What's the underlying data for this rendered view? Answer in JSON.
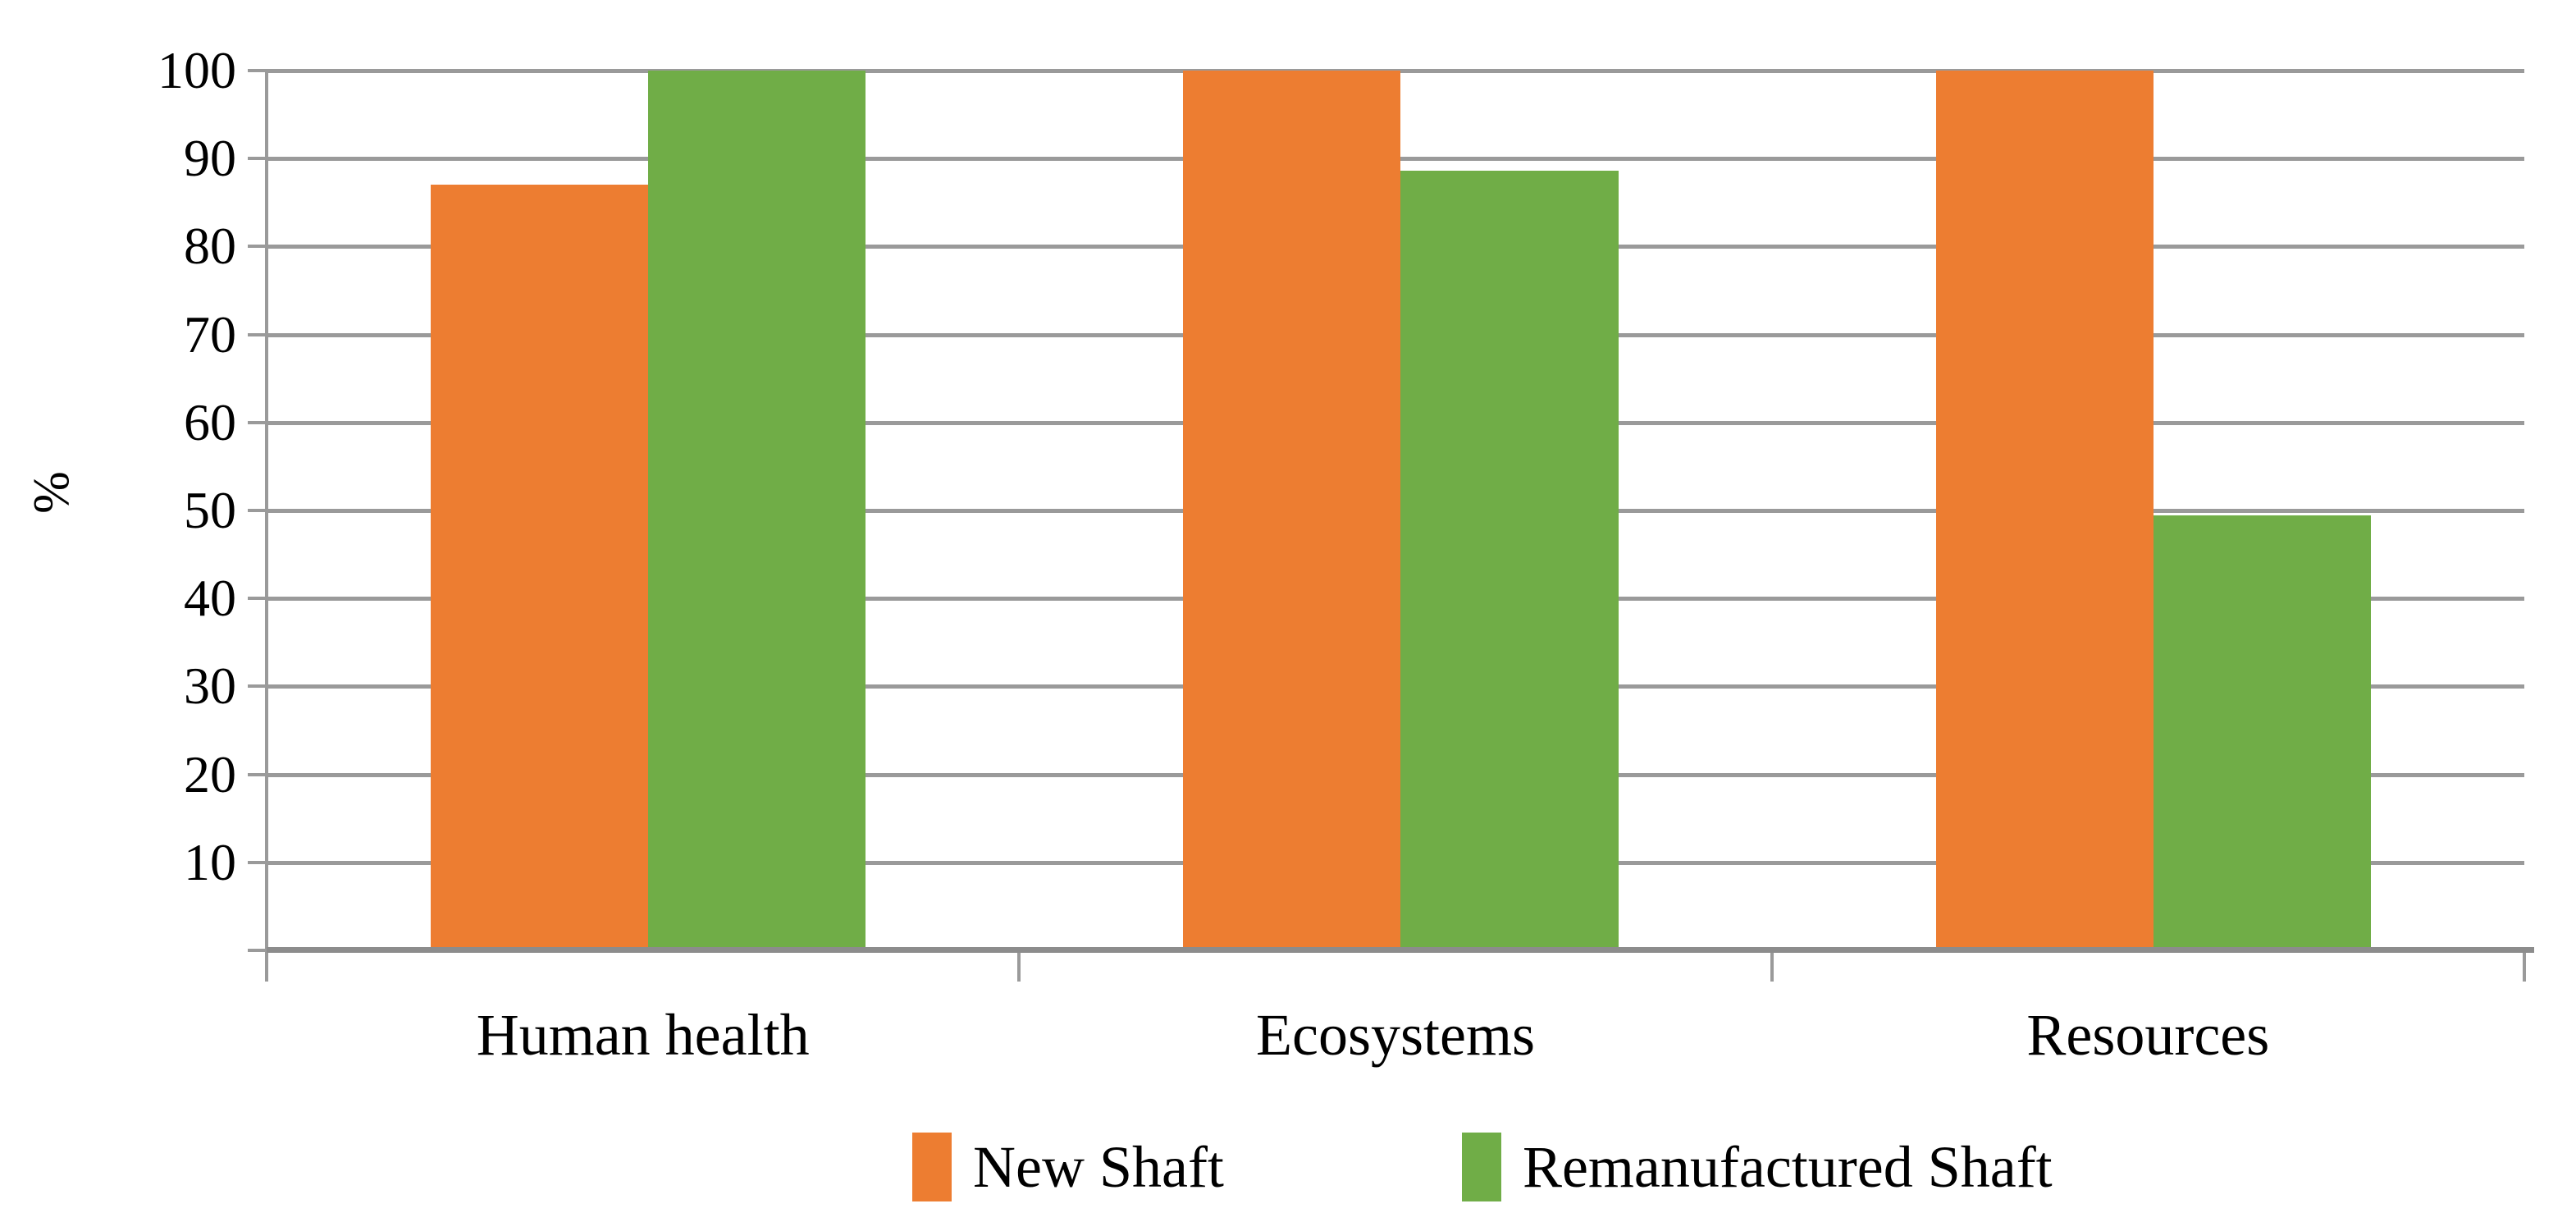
{
  "figure": {
    "background": "#ffffff",
    "text_color": "#000000",
    "gridline_color": "#9A9A9A",
    "axis_color": "#8C8C8C"
  },
  "chart_data": {
    "type": "bar",
    "title": "",
    "xlabel": "",
    "ylabel": "%",
    "categories": [
      "Human health",
      "Ecosystems",
      "Resources"
    ],
    "series": [
      {
        "name": "New Shaft",
        "color": "#ED7D31",
        "values": [
          87,
          100,
          100
        ]
      },
      {
        "name": "Remanufactured Shaft",
        "color": "#70AD47",
        "values": [
          100,
          88.6,
          49.4
        ]
      }
    ],
    "ylim": [
      0,
      100
    ],
    "ytick_step": 10,
    "ytick_labels": [
      "10",
      "20",
      "30",
      "40",
      "50",
      "60",
      "70",
      "80",
      "90",
      "100"
    ],
    "grid": "horizontal-only",
    "legend_position": "bottom-center"
  }
}
